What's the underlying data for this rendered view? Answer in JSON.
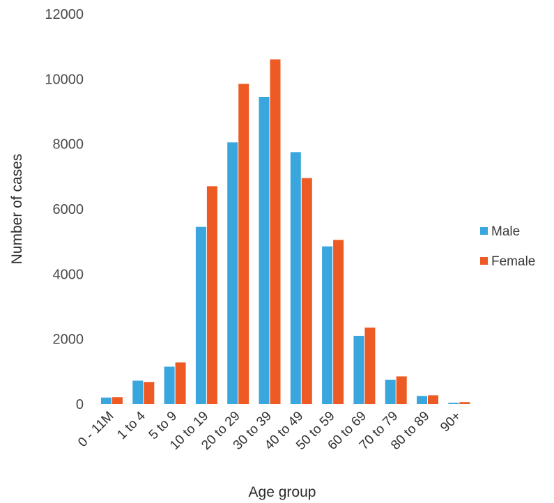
{
  "chart_data": {
    "type": "bar",
    "title": "",
    "xlabel": "Age group",
    "ylabel": "Number of cases",
    "ylim": [
      0,
      12000
    ],
    "yticks": [
      0,
      2000,
      4000,
      6000,
      8000,
      10000,
      12000
    ],
    "grid": false,
    "legend_position": "right",
    "categories": [
      "0 - 11M",
      "1 to 4",
      "5 to 9",
      "10 to 19",
      "20 to 29",
      "30 to 39",
      "40 to 49",
      "50 to 59",
      "60 to 69",
      "70 to 79",
      "80 to 89",
      "90+"
    ],
    "series": [
      {
        "name": "Male",
        "color": "#3aa6de",
        "values": [
          200,
          720,
          1150,
          5450,
          8050,
          9450,
          7750,
          4850,
          2100,
          750,
          250,
          40
        ]
      },
      {
        "name": "Female",
        "color": "#ee5a24",
        "values": [
          210,
          680,
          1280,
          6700,
          9850,
          10600,
          6950,
          5050,
          2350,
          850,
          270,
          60
        ]
      }
    ]
  }
}
